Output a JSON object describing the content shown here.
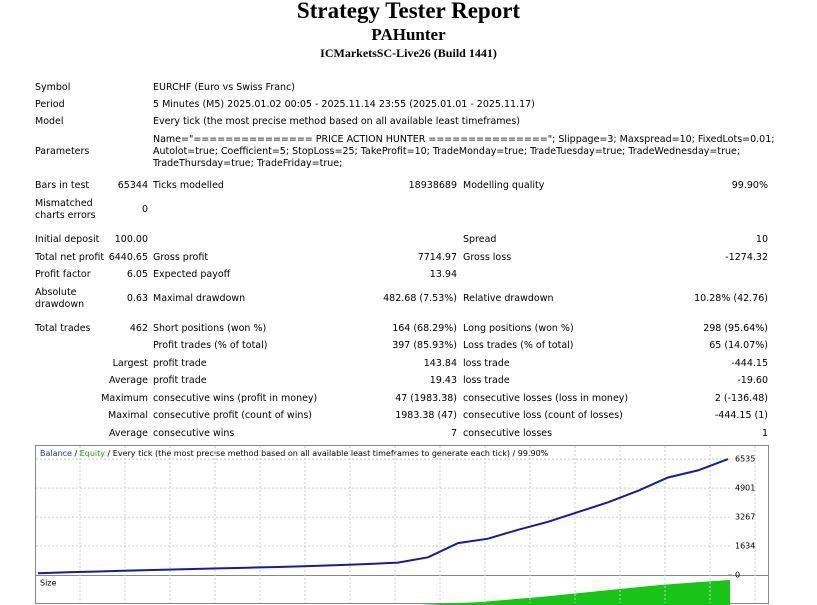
{
  "header": {
    "title": "Strategy Tester Report",
    "expert": "PAHunter",
    "server": "ICMarketsSC-Live26 (Build 1441)"
  },
  "info": [
    {
      "label": "Symbol",
      "value": "EURCHF (Euro vs Swiss Franc)"
    },
    {
      "label": "Period",
      "value": "5 Minutes (M5) 2025.01.02 00:05 - 2025.11.14 23:55 (2025.01.01 - 2025.11.17)"
    },
    {
      "label": "Model",
      "value": "Every tick (the most precise method based on all available least timeframes)"
    }
  ],
  "parameters": {
    "label": "Parameters",
    "lines": [
      "Name=\"=============== PRICE ACTION HUNTER ===============\"; Slippage=3; Maxspread=10; FixedLots=0.01;",
      "Autolot=true; Coefficient=5; StopLoss=25; TakeProfit=10; TradeMonday=true; TradeTuesday=true; TradeWednesday=true;",
      "TradeThursday=true; TradeFriday=true;"
    ]
  },
  "stats": [
    [
      "Bars in test",
      "65344",
      "Ticks modelled",
      "18938689",
      "Modelling quality",
      "99.90%"
    ],
    [
      "Mismatched charts errors",
      "0",
      null,
      null,
      null,
      null
    ],
    [
      "Initial deposit",
      "100.00",
      null,
      null,
      "Spread",
      "10"
    ],
    [
      "Total net profit",
      "6440.65",
      "Gross profit",
      "7714.97",
      "Gross loss",
      "-1274.32"
    ],
    [
      "Profit factor",
      "6.05",
      "Expected payoff",
      "13.94",
      null,
      null
    ],
    [
      "Absolute drawdown",
      "0.63",
      "Maximal drawdown",
      "482.68 (7.53%)",
      "Relative drawdown",
      "10.28% (42.76)"
    ],
    [
      "Total trades",
      "462",
      "Short positions (won %)",
      "164 (68.29%)",
      "Long positions (won %)",
      "298 (95.64%)"
    ],
    [
      null,
      null,
      "Profit trades (% of total)",
      "397 (85.93%)",
      "Loss trades (% of total)",
      "65 (14.07%)"
    ],
    [
      null,
      "Largest",
      "profit trade",
      "143.84",
      "loss trade",
      "-444.15"
    ],
    [
      null,
      "Average",
      "profit trade",
      "19.43",
      "loss trade",
      "-19.60"
    ],
    [
      null,
      "Maximum",
      "consecutive wins (profit in money)",
      "47 (1983.38)",
      "consecutive losses (loss in money)",
      "2 (-136.48)"
    ],
    [
      null,
      "Maximal",
      "consecutive profit (count of wins)",
      "1983.38 (47)",
      "consecutive loss (count of losses)",
      "-444.15 (1)"
    ],
    [
      null,
      "Average",
      "consecutive wins",
      "7",
      "consecutive losses",
      "1"
    ]
  ],
  "chart": {
    "legend": {
      "balance": "Balance",
      "separator": "/",
      "equity": "Equity",
      "text": "/ Every tick (the most precise method based on all available least timeframes to generate each tick) / 99.90%"
    },
    "ylim": [
      0,
      7220
    ],
    "yticks": [
      0,
      1634,
      3267,
      4901,
      6535
    ],
    "balance": [
      100,
      150,
      200,
      250,
      290,
      330,
      370,
      410,
      450,
      500,
      560,
      620,
      700,
      1000,
      1800,
      2050,
      2550,
      3000,
      3550,
      4100,
      4750,
      5500,
      5900,
      6540
    ],
    "color": "#1a1a9c",
    "size_label": "Size"
  }
}
